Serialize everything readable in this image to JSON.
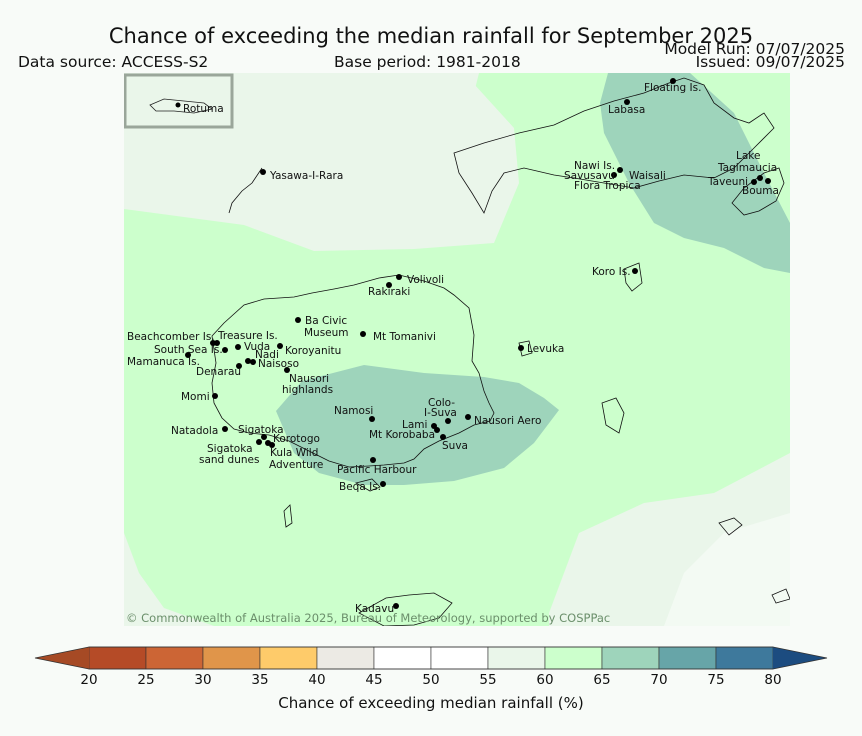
{
  "header": {
    "title": "Chance of exceeding the median rainfall for September 2025",
    "data_source": "Data source: ACCESS-S2",
    "base_period": "Base period: 1981-2018",
    "model_run": "Model Run: 07/07/2025",
    "issued": "Issued: 09/07/2025"
  },
  "map": {
    "inset_label": "Rotuma",
    "copyright": "© Commonwealth of Australia 2025, Bureau of Meteorology, supported by COSPPac",
    "places": {
      "floating": "Floating Is.",
      "labasa": "Labasa",
      "nawi": "Nawi Is.",
      "savusavu": "Savusavu",
      "waisali": "Waisali",
      "flora": "Flora Tropica",
      "lake1": "Lake",
      "lake2": "Tagimaucia",
      "taveuni": "Taveuni",
      "bouma": "Bouma",
      "yasawa": "Yasawa-I-Rara",
      "koro": "Koro Is.",
      "volivoli": "Volivoli",
      "rakiraki": "Rakiraki",
      "bacivic1": "Ba Civic",
      "bacivic2": "Museum",
      "tomanivi": "Mt Tomanivi",
      "beachcomber": "Beachcomber Is.",
      "treasure": "Treasure Is.",
      "southsea": "South Sea Is.",
      "vuda": "Vuda",
      "koroyanitu": "Koroyanitu",
      "nadi": "Nadi",
      "mamanuca": "Mamanuca Is.",
      "naisoso": "Naisoso",
      "denarau": "Denarau",
      "nausori1": "Nausori",
      "nausori2": "highlands",
      "levuka": "Levuka",
      "momi": "Momi",
      "namosi": "Namosi",
      "colo1": "Colo-",
      "colo2": "I-Suva",
      "lami": "Lami",
      "nausoriaero": "Nausori Aero",
      "korobaba": "Mt Korobaba",
      "suva": "Suva",
      "natadola": "Natadola",
      "sigatoka": "Sigatoka",
      "korotogo": "Korotogo",
      "sigsand1": "Sigatoka",
      "sigsand2": "sand dunes",
      "kula1": "Kula Wild",
      "kula2": "Adventure",
      "pacific": "Pacific Harbour",
      "beqa": "Beqa Is.",
      "kadavu": "Kadavu"
    },
    "category_levels_percent": {
      "background_sea": 55,
      "main_green": 60,
      "core_bands": 65
    }
  },
  "colorbar": {
    "label": "Chance of exceeding median rainfall (%)",
    "ticks": [
      "20",
      "25",
      "30",
      "35",
      "40",
      "45",
      "50",
      "55",
      "60",
      "65",
      "70",
      "75",
      "80"
    ],
    "colors": [
      "#a64a25",
      "#b54b27",
      "#cc6535",
      "#e0954a",
      "#fecb6a",
      "#eceae4",
      "#ffffff",
      "#ffffff",
      "#eaf6ea",
      "#ccffcc",
      "#9ed4bb",
      "#67a5a8",
      "#3e799c",
      "#1c4c80"
    ],
    "extend": "both"
  }
}
